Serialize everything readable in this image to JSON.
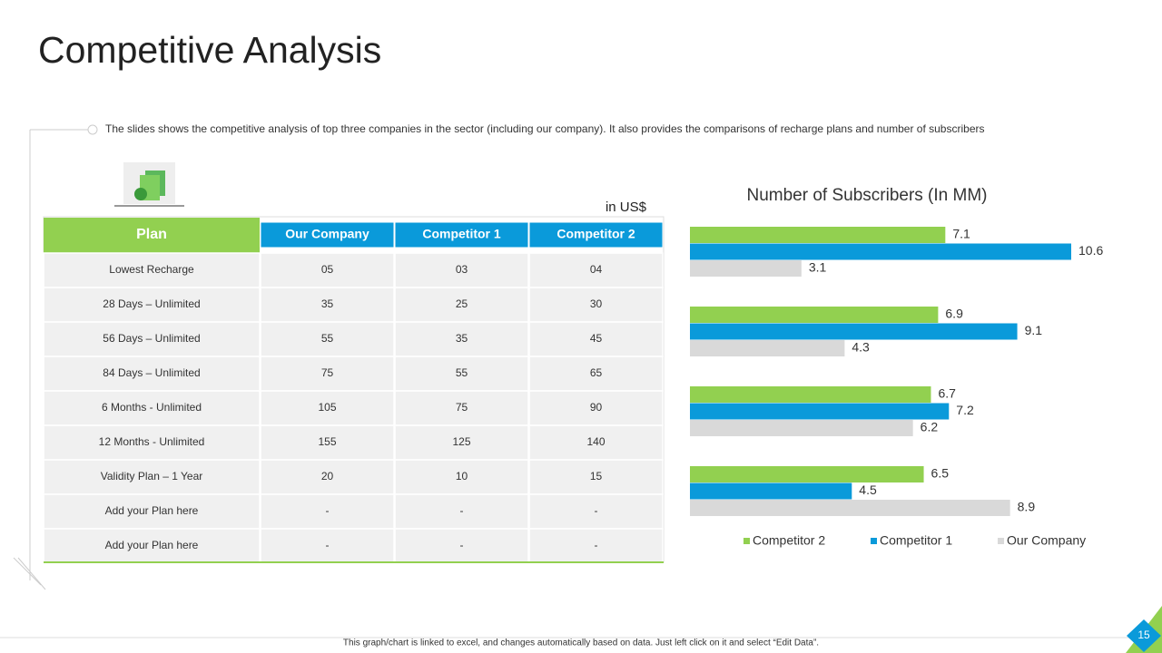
{
  "title": "Competitive Analysis",
  "description": "The slides shows the competitive analysis of top three companies in the sector (including our company). It also provides  the comparisons of recharge plans and number of subscribers",
  "currency_note": "in US$",
  "table": {
    "header": [
      "Plan",
      "Our Company",
      "Competitor 1",
      "Competitor 2"
    ],
    "rows": [
      [
        "Lowest Recharge",
        "05",
        "03",
        "04"
      ],
      [
        "28 Days – Unlimited",
        "35",
        "25",
        "30"
      ],
      [
        "56 Days – Unlimited",
        "55",
        "35",
        "45"
      ],
      [
        "84 Days – Unlimited",
        "75",
        "55",
        "65"
      ],
      [
        "6 Months - Unlimited",
        "105",
        "75",
        "90"
      ],
      [
        "12 Months - Unlimited",
        "155",
        "125",
        "140"
      ],
      [
        "Validity Plan – 1 Year",
        "20",
        "10",
        "15"
      ],
      [
        "Add your Plan here",
        "-",
        "-",
        "-"
      ],
      [
        "Add your Plan here",
        "-",
        "-",
        "-"
      ]
    ]
  },
  "chart_data": {
    "type": "hbar",
    "title": "Number  of Subscribers (In MM)",
    "categories": [
      null,
      null,
      null,
      null
    ],
    "series": [
      {
        "name": "Competitor 2",
        "color": "#92d050",
        "values": [
          7.1,
          6.9,
          6.7,
          6.5
        ]
      },
      {
        "name": "Competitor 1",
        "color": "#0a9ada",
        "values": [
          10.6,
          9.1,
          7.2,
          4.5
        ]
      },
      {
        "name": "Our Company",
        "color": "#d9d9d9",
        "values": [
          3.1,
          4.3,
          6.2,
          8.9
        ]
      }
    ],
    "data_labels": true,
    "legend": "bottom"
  },
  "footer": "This graph/chart is linked to excel, and changes automatically based on data. Just left click on it and select “Edit Data”.",
  "page_number": "15"
}
